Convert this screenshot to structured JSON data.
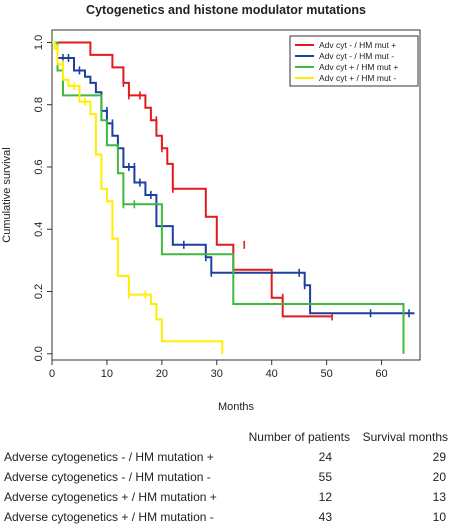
{
  "chart_data": {
    "type": "line",
    "step": true,
    "title": "Cytogenetics and histone modulator mutations",
    "xlabel": "Months",
    "ylabel": "Cumulative survival",
    "xlim": [
      0,
      67
    ],
    "ylim": [
      -0.02,
      1.04
    ],
    "xticks": [
      "0",
      "10",
      "20",
      "30",
      "40",
      "50",
      "60"
    ],
    "yticks": [
      "0.0",
      "0.2",
      "0.4",
      "0.6",
      "0.8",
      "1.0"
    ],
    "legend_position": "top-right",
    "series": [
      {
        "name": "Adv cyt - / HM mut +",
        "color": "#e31a1c",
        "points": [
          [
            0,
            1.0
          ],
          [
            7,
            1.0
          ],
          [
            7,
            0.96
          ],
          [
            11,
            0.96
          ],
          [
            11,
            0.92
          ],
          [
            13,
            0.92
          ],
          [
            13,
            0.87
          ],
          [
            14,
            0.87
          ],
          [
            14,
            0.83
          ],
          [
            17,
            0.83
          ],
          [
            17,
            0.79
          ],
          [
            18,
            0.79
          ],
          [
            18,
            0.75
          ],
          [
            19,
            0.75
          ],
          [
            19,
            0.7
          ],
          [
            20,
            0.7
          ],
          [
            20,
            0.66
          ],
          [
            21,
            0.66
          ],
          [
            21,
            0.61
          ],
          [
            22,
            0.61
          ],
          [
            22,
            0.53
          ],
          [
            28,
            0.53
          ],
          [
            28,
            0.44
          ],
          [
            30,
            0.44
          ],
          [
            30,
            0.35
          ],
          [
            33,
            0.35
          ],
          [
            33,
            0.27
          ],
          [
            40,
            0.27
          ],
          [
            40,
            0.18
          ],
          [
            42,
            0.18
          ],
          [
            42,
            0.12
          ],
          [
            51,
            0.12
          ]
        ],
        "censors": [
          [
            13,
            0.87
          ],
          [
            14,
            0.83
          ],
          [
            16,
            0.83
          ],
          [
            19,
            0.75
          ],
          [
            20,
            0.66
          ],
          [
            22,
            0.53
          ],
          [
            35,
            0.35
          ],
          [
            42,
            0.18
          ],
          [
            51,
            0.12
          ]
        ]
      },
      {
        "name": "Adv cyt - / HM mut -",
        "color": "#1f3f9f",
        "points": [
          [
            0,
            1.0
          ],
          [
            1,
            1.0
          ],
          [
            1,
            0.95
          ],
          [
            4,
            0.95
          ],
          [
            4,
            0.91
          ],
          [
            6,
            0.91
          ],
          [
            6,
            0.89
          ],
          [
            7,
            0.89
          ],
          [
            7,
            0.87
          ],
          [
            8,
            0.87
          ],
          [
            8,
            0.84
          ],
          [
            9,
            0.84
          ],
          [
            9,
            0.78
          ],
          [
            10,
            0.78
          ],
          [
            10,
            0.74
          ],
          [
            11,
            0.74
          ],
          [
            11,
            0.7
          ],
          [
            12,
            0.7
          ],
          [
            12,
            0.66
          ],
          [
            13,
            0.66
          ],
          [
            13,
            0.6
          ],
          [
            15,
            0.6
          ],
          [
            15,
            0.55
          ],
          [
            17,
            0.55
          ],
          [
            17,
            0.51
          ],
          [
            19,
            0.51
          ],
          [
            19,
            0.41
          ],
          [
            22,
            0.41
          ],
          [
            22,
            0.35
          ],
          [
            28,
            0.35
          ],
          [
            28,
            0.31
          ],
          [
            29,
            0.31
          ],
          [
            29,
            0.26
          ],
          [
            46,
            0.26
          ],
          [
            46,
            0.22
          ],
          [
            47,
            0.22
          ],
          [
            47,
            0.13
          ],
          [
            66,
            0.13
          ]
        ],
        "censors": [
          [
            2,
            0.95
          ],
          [
            3,
            0.95
          ],
          [
            5,
            0.91
          ],
          [
            10,
            0.78
          ],
          [
            11,
            0.74
          ],
          [
            14,
            0.6
          ],
          [
            15,
            0.6
          ],
          [
            16,
            0.55
          ],
          [
            18,
            0.51
          ],
          [
            24,
            0.35
          ],
          [
            28,
            0.31
          ],
          [
            29,
            0.26
          ],
          [
            45,
            0.26
          ],
          [
            46,
            0.22
          ],
          [
            58,
            0.13
          ],
          [
            65,
            0.13
          ]
        ]
      },
      {
        "name": "Adv cyt + / HM mut +",
        "color": "#3fb83f",
        "points": [
          [
            0,
            1.0
          ],
          [
            1,
            1.0
          ],
          [
            1,
            0.91
          ],
          [
            2,
            0.91
          ],
          [
            2,
            0.83
          ],
          [
            9,
            0.83
          ],
          [
            9,
            0.75
          ],
          [
            10,
            0.75
          ],
          [
            10,
            0.67
          ],
          [
            12,
            0.67
          ],
          [
            12,
            0.58
          ],
          [
            13,
            0.58
          ],
          [
            13,
            0.48
          ],
          [
            20,
            0.48
          ],
          [
            20,
            0.32
          ],
          [
            33,
            0.32
          ],
          [
            33,
            0.16
          ],
          [
            64,
            0.16
          ],
          [
            64,
            0.0
          ]
        ],
        "censors": [
          [
            13,
            0.48
          ],
          [
            15,
            0.48
          ]
        ]
      },
      {
        "name": "Adv cyt + / HM mut -",
        "color": "#ffee00",
        "points": [
          [
            0,
            1.0
          ],
          [
            0.5,
            1.0
          ],
          [
            0.5,
            0.98
          ],
          [
            1,
            0.98
          ],
          [
            1,
            0.93
          ],
          [
            2,
            0.93
          ],
          [
            2,
            0.88
          ],
          [
            3,
            0.88
          ],
          [
            3,
            0.86
          ],
          [
            5,
            0.86
          ],
          [
            5,
            0.81
          ],
          [
            7,
            0.81
          ],
          [
            7,
            0.77
          ],
          [
            8,
            0.77
          ],
          [
            8,
            0.64
          ],
          [
            9,
            0.64
          ],
          [
            9,
            0.53
          ],
          [
            10,
            0.53
          ],
          [
            10,
            0.49
          ],
          [
            11,
            0.49
          ],
          [
            11,
            0.37
          ],
          [
            12,
            0.37
          ],
          [
            12,
            0.25
          ],
          [
            14,
            0.25
          ],
          [
            14,
            0.19
          ],
          [
            18,
            0.19
          ],
          [
            18,
            0.16
          ],
          [
            19,
            0.16
          ],
          [
            19,
            0.11
          ],
          [
            20,
            0.11
          ],
          [
            20,
            0.04
          ],
          [
            31,
            0.04
          ],
          [
            31,
            0.0
          ]
        ],
        "censors": [
          [
            1,
            0.98
          ],
          [
            2,
            0.93
          ],
          [
            4,
            0.86
          ],
          [
            6,
            0.81
          ],
          [
            14,
            0.19
          ],
          [
            17,
            0.19
          ]
        ]
      }
    ]
  },
  "table": {
    "headers": [
      "Number of patients",
      "Survival months"
    ],
    "rows": [
      {
        "label": "Adverse cytogenetics - / HM mutation +",
        "patients": "24",
        "months": "29"
      },
      {
        "label": "Adverse cytogenetics - / HM mutation -",
        "patients": "55",
        "months": "20"
      },
      {
        "label": "Adverse cytogenetics + / HM mutation +",
        "patients": "12",
        "months": "13"
      },
      {
        "label": "Adverse cytogenetics + / HM mutation -",
        "patients": "43",
        "months": "10"
      }
    ]
  }
}
